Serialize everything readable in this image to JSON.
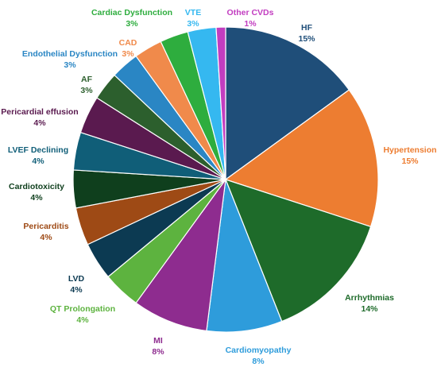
{
  "chart_data": {
    "type": "pie",
    "title": "",
    "legend": "none",
    "slices": [
      {
        "label": "HF",
        "value": 15,
        "value_label": "15%",
        "color": "#1F4E79"
      },
      {
        "label": "Hypertension",
        "value": 15,
        "value_label": "15%",
        "color": "#ED7D31"
      },
      {
        "label": "Arrhythmias",
        "value": 14,
        "value_label": "14%",
        "color": "#1E6B2A"
      },
      {
        "label": "Cardiomyopathy",
        "value": 8,
        "value_label": "8%",
        "color": "#2E9CDB"
      },
      {
        "label": "MI",
        "value": 8,
        "value_label": "8%",
        "color": "#8E2C8F"
      },
      {
        "label": "QT Prolongation",
        "value": 4,
        "value_label": "4%",
        "color": "#5DB33F"
      },
      {
        "label": "LVD",
        "value": 4,
        "value_label": "4%",
        "color": "#0C3A52"
      },
      {
        "label": "Pericarditis",
        "value": 4,
        "value_label": "4%",
        "color": "#9E4A15"
      },
      {
        "label": "Cardiotoxicity",
        "value": 4,
        "value_label": "4%",
        "color": "#0F3F1D"
      },
      {
        "label": "LVEF Declining",
        "value": 4,
        "value_label": "4%",
        "color": "#105E78"
      },
      {
        "label": "Pericardial effusion",
        "value": 4,
        "value_label": "4%",
        "color": "#5A1A4F"
      },
      {
        "label": "AF",
        "value": 3,
        "value_label": "3%",
        "color": "#2C5F2D"
      },
      {
        "label": "Endothelial Dysfunction",
        "value": 3,
        "value_label": "3%",
        "color": "#2A86C4"
      },
      {
        "label": "CAD",
        "value": 3,
        "value_label": "3%",
        "color": "#F08A4B"
      },
      {
        "label": "Cardiac Dysfunction",
        "value": 3,
        "value_label": "3%",
        "color": "#2EAD3E"
      },
      {
        "label": "VTE",
        "value": 3,
        "value_label": "3%",
        "color": "#35B8F0"
      },
      {
        "label": "Other CVDs",
        "value": 1,
        "value_label": "1%",
        "color": "#C23DC0"
      }
    ]
  }
}
